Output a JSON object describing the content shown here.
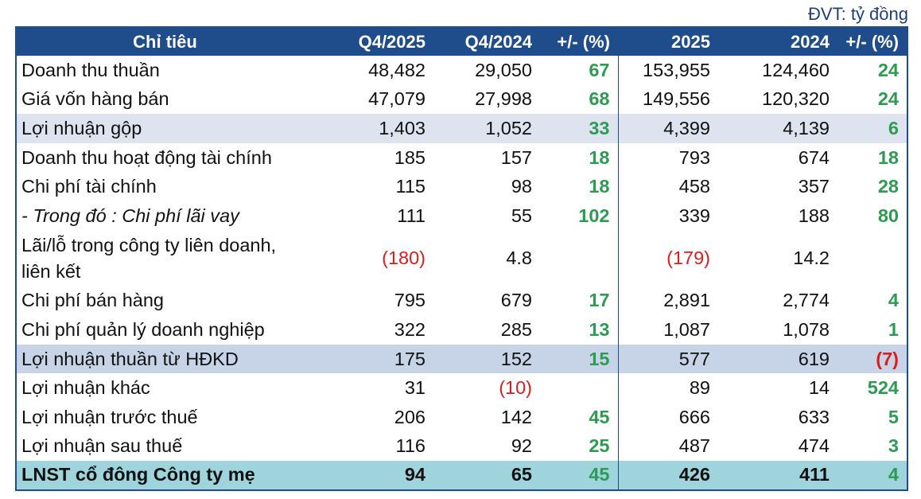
{
  "unit_label": "ĐVT: tỷ đồng",
  "headers": [
    "Chỉ tiêu",
    "Q4/2025",
    "Q4/2024",
    "+/- (%)",
    "2025",
    "2024",
    "+/- (%)"
  ],
  "rows": [
    {
      "label": "Doanh thu thuần",
      "q4_2025": "48,482",
      "q4_2024": "29,050",
      "q_chg": "67",
      "y2025": "153,955",
      "y2024": "124,460",
      "y_chg": "24"
    },
    {
      "label": "Giá vốn hàng bán",
      "q4_2025": "47,079",
      "q4_2024": "27,998",
      "q_chg": "68",
      "y2025": "149,556",
      "y2024": "120,320",
      "y_chg": "24"
    },
    {
      "label": "Lợi nhuận gộp",
      "q4_2025": "1,403",
      "q4_2024": "1,052",
      "q_chg": "33",
      "y2025": "4,399",
      "y2024": "4,139",
      "y_chg": "6"
    },
    {
      "label": "Doanh thu hoạt động tài chính",
      "q4_2025": "185",
      "q4_2024": "157",
      "q_chg": "18",
      "y2025": "793",
      "y2024": "674",
      "y_chg": "18"
    },
    {
      "label": "Chi phí tài chính",
      "q4_2025": "115",
      "q4_2024": "98",
      "q_chg": "18",
      "y2025": "458",
      "y2024": "357",
      "y_chg": "28"
    },
    {
      "label": "- Trong đó : Chi phí lãi vay",
      "q4_2025": "111",
      "q4_2024": "55",
      "q_chg": "102",
      "y2025": "339",
      "y2024": "188",
      "y_chg": "80"
    },
    {
      "label": "Lãi/lỗ trong công ty liên doanh, liên kết",
      "q4_2025": "(180)",
      "q4_2024": "4.8",
      "q_chg": "",
      "y2025": "(179)",
      "y2024": "14.2",
      "y_chg": ""
    },
    {
      "label": "Chi phí bán hàng",
      "q4_2025": "795",
      "q4_2024": "679",
      "q_chg": "17",
      "y2025": "2,891",
      "y2024": "2,774",
      "y_chg": "4"
    },
    {
      "label": "Chi phí quản lý doanh nghiệp",
      "q4_2025": "322",
      "q4_2024": "285",
      "q_chg": "13",
      "y2025": "1,087",
      "y2024": "1,078",
      "y_chg": "1"
    },
    {
      "label": "Lợi nhuận thuần từ HĐKD",
      "q4_2025": "175",
      "q4_2024": "152",
      "q_chg": "15",
      "y2025": "577",
      "y2024": "619",
      "y_chg": "(7)"
    },
    {
      "label": "Lợi nhuận khác",
      "q4_2025": "31",
      "q4_2024": "(10)",
      "q_chg": "",
      "y2025": "89",
      "y2024": "14",
      "y_chg": "524"
    },
    {
      "label": "Lợi nhuận trước thuế",
      "q4_2025": "206",
      "q4_2024": "142",
      "q_chg": "45",
      "y2025": "666",
      "y2024": "633",
      "y_chg": "5"
    },
    {
      "label": "Lợi nhuận sau thuế",
      "q4_2025": "116",
      "q4_2024": "92",
      "q_chg": "25",
      "y2025": "487",
      "y2024": "474",
      "y_chg": "3"
    },
    {
      "label": "LNST cổ đông Công ty mẹ",
      "q4_2025": "94",
      "q4_2024": "65",
      "q_chg": "45",
      "y2025": "426",
      "y2024": "411",
      "y_chg": "4"
    }
  ],
  "colors": {
    "header_bg": "#1f4d8c",
    "positive": "#2e9b52",
    "negative": "#d62020",
    "highlight_row": "#dde4ef",
    "total_row": "#9fd4dd"
  }
}
